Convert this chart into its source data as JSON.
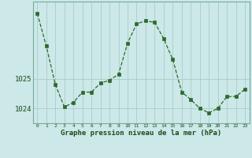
{
  "x": [
    0,
    1,
    2,
    3,
    4,
    5,
    6,
    7,
    8,
    9,
    10,
    11,
    12,
    13,
    14,
    15,
    16,
    17,
    18,
    19,
    20,
    21,
    22,
    23
  ],
  "y": [
    1027.2,
    1026.1,
    1024.8,
    1024.05,
    1024.2,
    1024.55,
    1024.55,
    1024.85,
    1024.95,
    1025.15,
    1026.2,
    1026.85,
    1026.95,
    1026.9,
    1026.35,
    1025.65,
    1024.55,
    1024.3,
    1024.0,
    1023.85,
    1024.0,
    1024.4,
    1024.4,
    1024.65
  ],
  "line_color": "#2d6a2d",
  "marker_color": "#2d6a2d",
  "bg_color": "#cce8e8",
  "grid_color": "#aacccc",
  "xlabel": "Graphe pression niveau de la mer (hPa)",
  "ylim_min": 1023.5,
  "ylim_max": 1027.6,
  "yticks": [
    1024,
    1025
  ],
  "xlim_min": -0.5,
  "xlim_max": 23.5
}
